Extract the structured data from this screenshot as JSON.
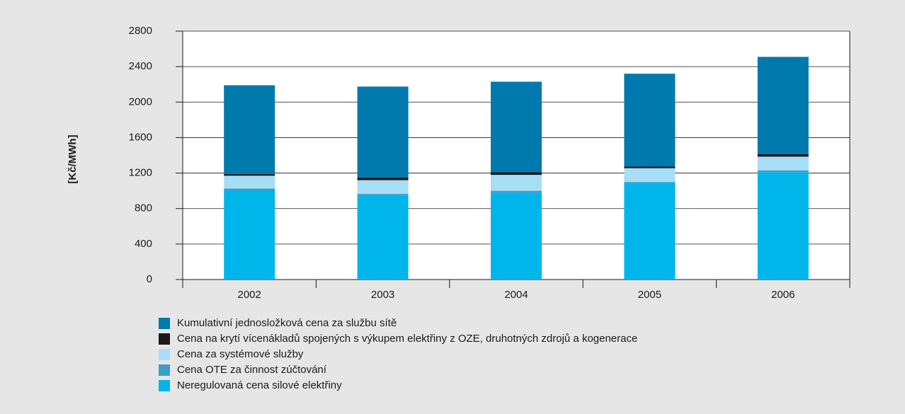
{
  "chart_data": {
    "type": "stacked_bar",
    "y_label": "[Kč/MWh]",
    "categories": [
      "2002",
      "2003",
      "2004",
      "2005",
      "2006"
    ],
    "series": [
      {
        "name": "Neregulovaná cena silové elektřiny",
        "color": "#00b5ea",
        "values": [
          1005,
          950,
          980,
          1090,
          1210
        ]
      },
      {
        "name": "Cena OTE za činnost zúčtování",
        "color": "#3a9ec4",
        "values": [
          20,
          15,
          20,
          10,
          20
        ]
      },
      {
        "name": "Cena za systémové služby",
        "color": "#a8ddf6",
        "values": [
          145,
          155,
          180,
          155,
          155
        ]
      },
      {
        "name": "Cena na krytí vícenákladů spojených s výkupem elektřiny z OZE, druhotných zdrojů a kogenerace",
        "color": "#1a1a1a",
        "values": [
          20,
          30,
          30,
          20,
          30
        ]
      },
      {
        "name": "Kumulativní jednosložková cena za službu sítě",
        "color": "#0079ad",
        "values": [
          1000,
          1025,
          1020,
          1045,
          1095
        ]
      }
    ],
    "ylim": [
      0,
      2800
    ],
    "yticks": [
      0,
      400,
      800,
      1200,
      1600,
      2000,
      2400,
      2800
    ],
    "grid": true
  }
}
